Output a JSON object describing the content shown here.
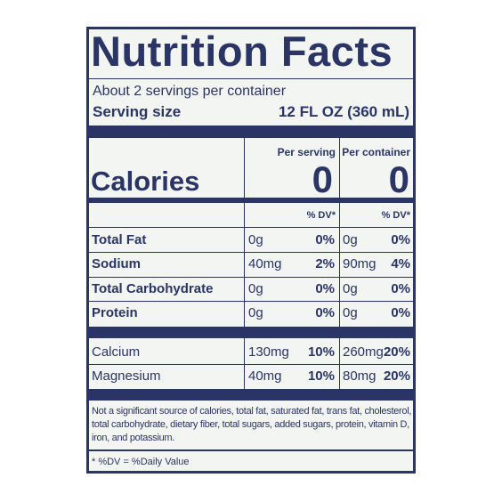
{
  "label": {
    "title": "Nutrition Facts",
    "servings": "About 2 servings per container",
    "serving_size_label": "Serving size",
    "serving_size_value": "12 FL OZ (360 mL)",
    "column_headers": [
      "Per serving",
      "Per container"
    ],
    "calories_label": "Calories",
    "calories": [
      "0",
      "0"
    ],
    "dv_headers": [
      "% DV*",
      "% DV*"
    ],
    "rows": [
      {
        "name": "Total Fat",
        "bold": true,
        "per_serving": "0g",
        "per_serving_dv": "0%",
        "per_container": "0g",
        "per_container_dv": "0%"
      },
      {
        "name": "Sodium",
        "bold": true,
        "per_serving": "40mg",
        "per_serving_dv": "2%",
        "per_container": "90mg",
        "per_container_dv": "4%"
      },
      {
        "name": "Total Carbohydrate",
        "bold": true,
        "per_serving": "0g",
        "per_serving_dv": "0%",
        "per_container": "0g",
        "per_container_dv": "0%"
      },
      {
        "name": "Protein",
        "bold": true,
        "per_serving": "0g",
        "per_serving_dv": "0%",
        "per_container": "0g",
        "per_container_dv": "0%"
      },
      {
        "name": "Calcium",
        "bold": false,
        "per_serving": "130mg",
        "per_serving_dv": "10%",
        "per_container": "260mg",
        "per_container_dv": "20%"
      },
      {
        "name": "Magnesium",
        "bold": false,
        "per_serving": "40mg",
        "per_serving_dv": "10%",
        "per_container": "80mg",
        "per_container_dv": "20%"
      }
    ],
    "footnote": "Not a significant source of calories, total fat, saturated fat, trans fat, cholesterol, total carbohydrate, dietary fiber, total sugars, added sugars, protein, vitamin D, iron, and potassium.",
    "dv_note": "* %DV = %Daily Value"
  }
}
